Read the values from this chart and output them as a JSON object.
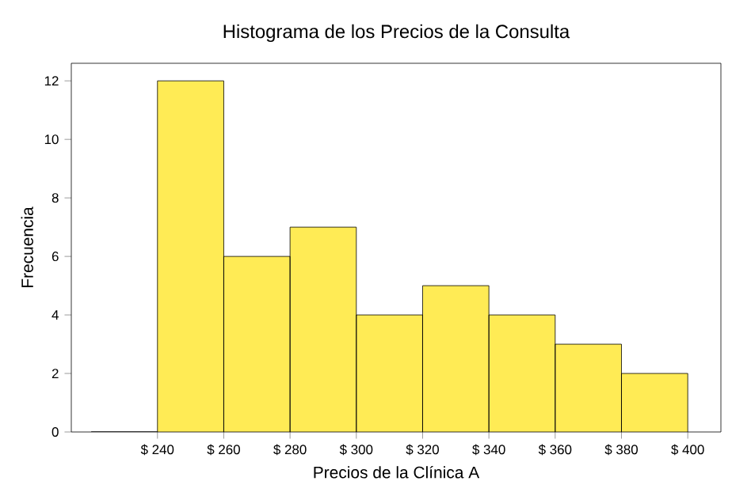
{
  "chart_data": {
    "type": "histogram",
    "title": "Histograma de los Precios de la Consulta",
    "xlabel": "Precios de la Clínica A",
    "ylabel": "Frecuencia",
    "bins": [
      220,
      240,
      260,
      280,
      300,
      320,
      340,
      360,
      380,
      400
    ],
    "values": [
      0,
      12,
      6,
      7,
      4,
      5,
      4,
      3,
      2
    ],
    "color": "#ffeb55",
    "xlim": [
      214,
      410
    ],
    "ylim": [
      0,
      12.6
    ],
    "xticks": [
      {
        "value": 240,
        "label": "$ 240"
      },
      {
        "value": 260,
        "label": "$ 260"
      },
      {
        "value": 280,
        "label": "$ 280"
      },
      {
        "value": 300,
        "label": "$ 300"
      },
      {
        "value": 320,
        "label": "$ 320"
      },
      {
        "value": 340,
        "label": "$ 340"
      },
      {
        "value": 360,
        "label": "$ 360"
      },
      {
        "value": 380,
        "label": "$ 380"
      },
      {
        "value": 400,
        "label": "$ 400"
      }
    ],
    "yticks": [
      0,
      2,
      4,
      6,
      8,
      10,
      12
    ]
  }
}
